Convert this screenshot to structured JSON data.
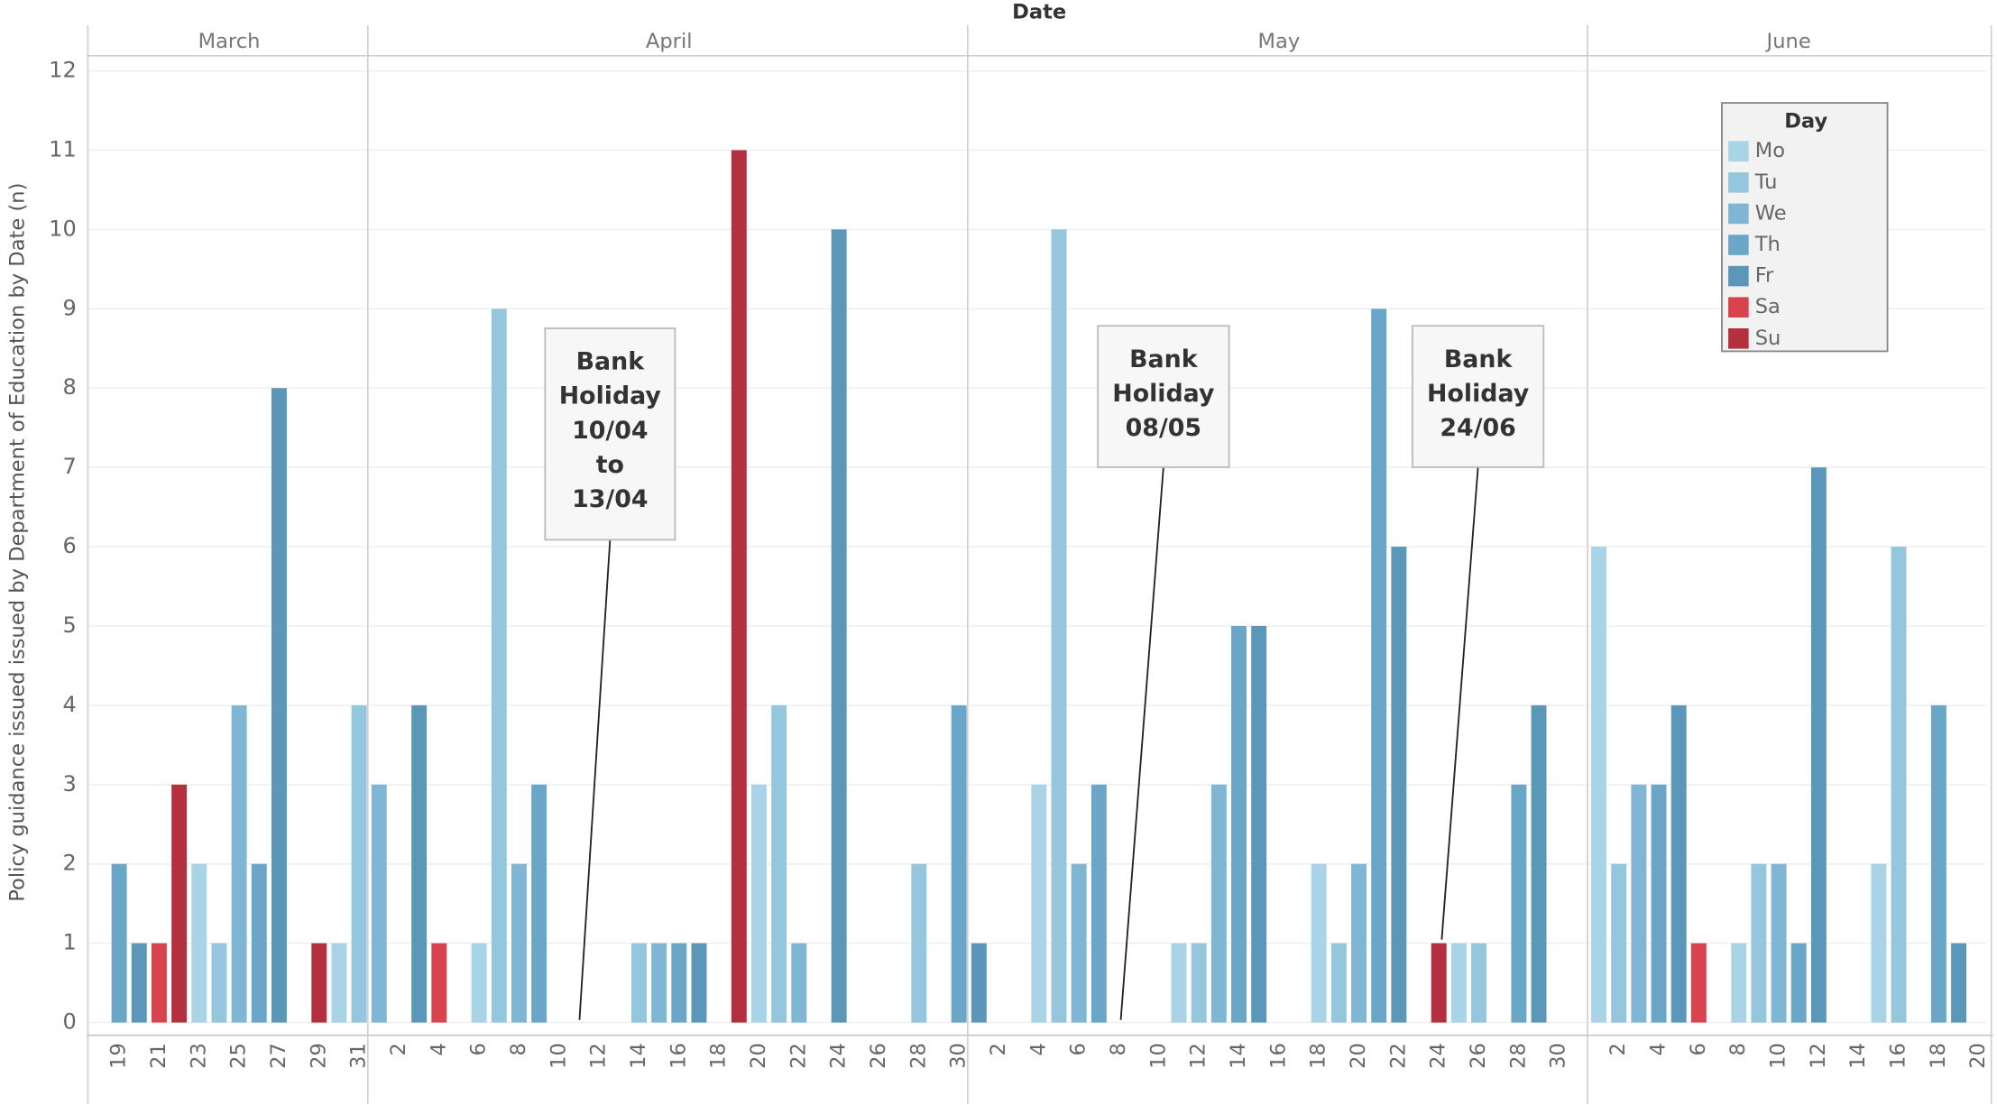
{
  "x_label": "Date",
  "y_label": "Policy guidance issued issued by Department of Education by Date (n)",
  "legend_title": "Day",
  "annotations": [
    [
      "Bank",
      "Holiday",
      "10/04",
      "to",
      "13/04"
    ],
    [
      "Bank",
      "Holiday",
      "08/05"
    ],
    [
      "Bank",
      "Holiday",
      "24/06"
    ]
  ],
  "chart_data": [
    {
      "type": "bar",
      "title": "March",
      "ylim": [
        -0.16,
        12.19
      ],
      "yticks": [
        0,
        1,
        2,
        3,
        4,
        5,
        6,
        7,
        8,
        9,
        10,
        11,
        12
      ],
      "grid": true,
      "categories": [
        null,
        19,
        null,
        21,
        null,
        23,
        null,
        25,
        null,
        27,
        null,
        29,
        null,
        31
      ],
      "series": [
        {
          "name": "Mo",
          "color": "#a9d3e6",
          "values": [
            null,
            null,
            null,
            null,
            null,
            2,
            null,
            null,
            null,
            null,
            null,
            null,
            1,
            null
          ]
        },
        {
          "name": "Tu",
          "color": "#94c6de",
          "values": [
            null,
            null,
            null,
            null,
            null,
            null,
            1,
            null,
            null,
            null,
            null,
            null,
            null,
            4
          ]
        },
        {
          "name": "We",
          "color": "#7fb6d4",
          "values": [
            null,
            null,
            null,
            null,
            null,
            null,
            null,
            4,
            null,
            null,
            null,
            null,
            null,
            null
          ]
        },
        {
          "name": "Th",
          "color": "#6aa6c8",
          "values": [
            null,
            2,
            null,
            null,
            null,
            null,
            null,
            null,
            2,
            null,
            null,
            null,
            null,
            null
          ]
        },
        {
          "name": "Fr",
          "color": "#5a97b8",
          "values": [
            null,
            null,
            1,
            null,
            null,
            null,
            null,
            null,
            null,
            8,
            null,
            null,
            null,
            null
          ]
        },
        {
          "name": "Sa",
          "color": "#d9434e",
          "values": [
            null,
            null,
            null,
            1,
            null,
            null,
            null,
            null,
            null,
            null,
            null,
            null,
            null,
            null
          ]
        },
        {
          "name": "Su",
          "color": "#b5303f",
          "values": [
            null,
            null,
            null,
            null,
            3,
            null,
            null,
            null,
            null,
            null,
            null,
            1,
            null,
            null
          ]
        }
      ]
    },
    {
      "type": "bar",
      "title": "April",
      "ylim": [
        -0.16,
        12.19
      ],
      "yticks": [
        0,
        1,
        2,
        3,
        4,
        5,
        6,
        7,
        8,
        9,
        10,
        11,
        12
      ],
      "grid": true,
      "categories": [
        null,
        2,
        null,
        4,
        null,
        6,
        null,
        8,
        null,
        10,
        null,
        12,
        null,
        14,
        null,
        16,
        null,
        18,
        null,
        20,
        null,
        22,
        null,
        24,
        null,
        26,
        null,
        28,
        null,
        30
      ],
      "series": [
        {
          "name": "Mo",
          "color": "#a9d3e6",
          "values": [
            null,
            null,
            null,
            null,
            null,
            1,
            null,
            null,
            null,
            null,
            null,
            null,
            null,
            null,
            null,
            null,
            null,
            null,
            null,
            3,
            null,
            null,
            null,
            null,
            null,
            null,
            null,
            null,
            null,
            null
          ]
        },
        {
          "name": "Tu",
          "color": "#94c6de",
          "values": [
            null,
            null,
            null,
            null,
            null,
            null,
            9,
            null,
            null,
            null,
            null,
            null,
            null,
            1,
            null,
            null,
            null,
            null,
            null,
            null,
            4,
            null,
            null,
            null,
            null,
            null,
            null,
            2,
            null,
            null
          ]
        },
        {
          "name": "We",
          "color": "#7fb6d4",
          "values": [
            3,
            null,
            null,
            null,
            null,
            null,
            null,
            2,
            null,
            null,
            null,
            null,
            null,
            null,
            1,
            null,
            null,
            null,
            null,
            null,
            null,
            1,
            null,
            null,
            null,
            null,
            null,
            null,
            null,
            null
          ]
        },
        {
          "name": "Th",
          "color": "#6aa6c8",
          "values": [
            null,
            null,
            null,
            null,
            null,
            null,
            null,
            null,
            3,
            null,
            null,
            null,
            null,
            null,
            null,
            1,
            null,
            null,
            null,
            null,
            null,
            null,
            null,
            null,
            null,
            null,
            null,
            null,
            null,
            4
          ]
        },
        {
          "name": "Fr",
          "color": "#5a97b8",
          "values": [
            null,
            null,
            4,
            null,
            null,
            null,
            null,
            null,
            null,
            null,
            null,
            null,
            null,
            null,
            null,
            null,
            1,
            null,
            null,
            null,
            null,
            null,
            null,
            10,
            null,
            null,
            null,
            null,
            null,
            null
          ]
        },
        {
          "name": "Sa",
          "color": "#d9434e",
          "values": [
            null,
            null,
            null,
            1,
            null,
            null,
            null,
            null,
            null,
            null,
            null,
            null,
            null,
            null,
            null,
            null,
            null,
            null,
            null,
            null,
            null,
            null,
            null,
            null,
            null,
            null,
            null,
            null,
            null,
            null
          ]
        },
        {
          "name": "Su",
          "color": "#b5303f",
          "values": [
            null,
            null,
            null,
            null,
            null,
            null,
            null,
            null,
            null,
            null,
            null,
            null,
            null,
            null,
            null,
            null,
            null,
            null,
            11,
            null,
            null,
            null,
            null,
            null,
            null,
            null,
            null,
            null,
            null,
            null
          ]
        }
      ]
    },
    {
      "type": "bar",
      "title": "May",
      "ylim": [
        -0.16,
        12.19
      ],
      "yticks": [
        0,
        1,
        2,
        3,
        4,
        5,
        6,
        7,
        8,
        9,
        10,
        11,
        12
      ],
      "grid": true,
      "categories": [
        null,
        2,
        null,
        4,
        null,
        6,
        null,
        8,
        null,
        10,
        null,
        12,
        null,
        14,
        null,
        16,
        null,
        18,
        null,
        20,
        null,
        22,
        null,
        24,
        null,
        26,
        null,
        28,
        null,
        30,
        null
      ],
      "series": [
        {
          "name": "Mo",
          "color": "#a9d3e6",
          "values": [
            null,
            null,
            null,
            3,
            null,
            null,
            null,
            null,
            null,
            null,
            1,
            null,
            null,
            null,
            null,
            null,
            null,
            2,
            null,
            null,
            null,
            null,
            null,
            null,
            1,
            null,
            null,
            null,
            null,
            null,
            null
          ]
        },
        {
          "name": "Tu",
          "color": "#94c6de",
          "values": [
            null,
            null,
            null,
            null,
            10,
            null,
            null,
            null,
            null,
            null,
            null,
            1,
            null,
            null,
            null,
            null,
            null,
            null,
            1,
            null,
            null,
            null,
            null,
            null,
            null,
            1,
            null,
            null,
            null,
            null,
            null
          ]
        },
        {
          "name": "We",
          "color": "#7fb6d4",
          "values": [
            null,
            null,
            null,
            null,
            null,
            2,
            null,
            null,
            null,
            null,
            null,
            null,
            3,
            null,
            null,
            null,
            null,
            null,
            null,
            2,
            null,
            null,
            null,
            null,
            null,
            null,
            null,
            null,
            null,
            null,
            null
          ]
        },
        {
          "name": "Th",
          "color": "#6aa6c8",
          "values": [
            null,
            null,
            null,
            null,
            null,
            null,
            3,
            null,
            null,
            null,
            null,
            null,
            null,
            5,
            null,
            null,
            null,
            null,
            null,
            null,
            9,
            null,
            null,
            null,
            null,
            null,
            null,
            3,
            null,
            null,
            null
          ]
        },
        {
          "name": "Fr",
          "color": "#5a97b8",
          "values": [
            1,
            null,
            null,
            null,
            null,
            null,
            null,
            null,
            null,
            null,
            null,
            null,
            null,
            null,
            5,
            null,
            null,
            null,
            null,
            null,
            null,
            6,
            null,
            null,
            null,
            null,
            null,
            null,
            4,
            null,
            null
          ]
        },
        {
          "name": "Sa",
          "color": "#d9434e",
          "values": [
            null,
            null,
            null,
            null,
            null,
            null,
            null,
            null,
            null,
            null,
            null,
            null,
            null,
            null,
            null,
            null,
            null,
            null,
            null,
            null,
            null,
            null,
            null,
            null,
            null,
            null,
            null,
            null,
            null,
            null,
            null
          ]
        },
        {
          "name": "Su",
          "color": "#b5303f",
          "values": [
            null,
            null,
            null,
            null,
            null,
            null,
            null,
            null,
            null,
            null,
            null,
            null,
            null,
            null,
            null,
            null,
            null,
            null,
            null,
            null,
            null,
            null,
            null,
            1,
            null,
            null,
            null,
            null,
            null,
            null,
            null
          ]
        }
      ]
    },
    {
      "type": "bar",
      "title": "June",
      "ylim": [
        -0.16,
        12.19
      ],
      "yticks": [
        0,
        1,
        2,
        3,
        4,
        5,
        6,
        7,
        8,
        9,
        10,
        11,
        12
      ],
      "grid": true,
      "categories": [
        null,
        2,
        null,
        4,
        null,
        6,
        null,
        8,
        null,
        10,
        null,
        12,
        null,
        14,
        null,
        16,
        null,
        18,
        null,
        20
      ],
      "series": [
        {
          "name": "Mo",
          "color": "#a9d3e6",
          "values": [
            6,
            null,
            null,
            null,
            null,
            null,
            null,
            1,
            null,
            null,
            null,
            null,
            null,
            null,
            2,
            null,
            null,
            null,
            null,
            null
          ]
        },
        {
          "name": "Tu",
          "color": "#94c6de",
          "values": [
            null,
            2,
            null,
            null,
            null,
            null,
            null,
            null,
            2,
            null,
            null,
            null,
            null,
            null,
            null,
            6,
            null,
            null,
            null,
            null
          ]
        },
        {
          "name": "We",
          "color": "#7fb6d4",
          "values": [
            null,
            null,
            3,
            null,
            null,
            null,
            null,
            null,
            null,
            2,
            null,
            null,
            null,
            null,
            null,
            null,
            null,
            null,
            null,
            null
          ]
        },
        {
          "name": "Th",
          "color": "#6aa6c8",
          "values": [
            null,
            null,
            null,
            3,
            null,
            null,
            null,
            null,
            null,
            null,
            1,
            null,
            null,
            null,
            null,
            null,
            null,
            4,
            null,
            null
          ]
        },
        {
          "name": "Fr",
          "color": "#5a97b8",
          "values": [
            null,
            null,
            null,
            null,
            4,
            null,
            null,
            null,
            null,
            null,
            null,
            7,
            null,
            null,
            null,
            null,
            null,
            null,
            1,
            null
          ]
        },
        {
          "name": "Sa",
          "color": "#d9434e",
          "values": [
            null,
            null,
            null,
            null,
            null,
            1,
            null,
            null,
            null,
            null,
            null,
            null,
            null,
            null,
            null,
            null,
            null,
            null,
            null,
            null
          ]
        },
        {
          "name": "Su",
          "color": "#b5303f",
          "values": [
            null,
            null,
            null,
            null,
            null,
            null,
            null,
            null,
            null,
            null,
            null,
            null,
            null,
            null,
            null,
            null,
            null,
            null,
            null,
            null
          ]
        }
      ]
    }
  ]
}
